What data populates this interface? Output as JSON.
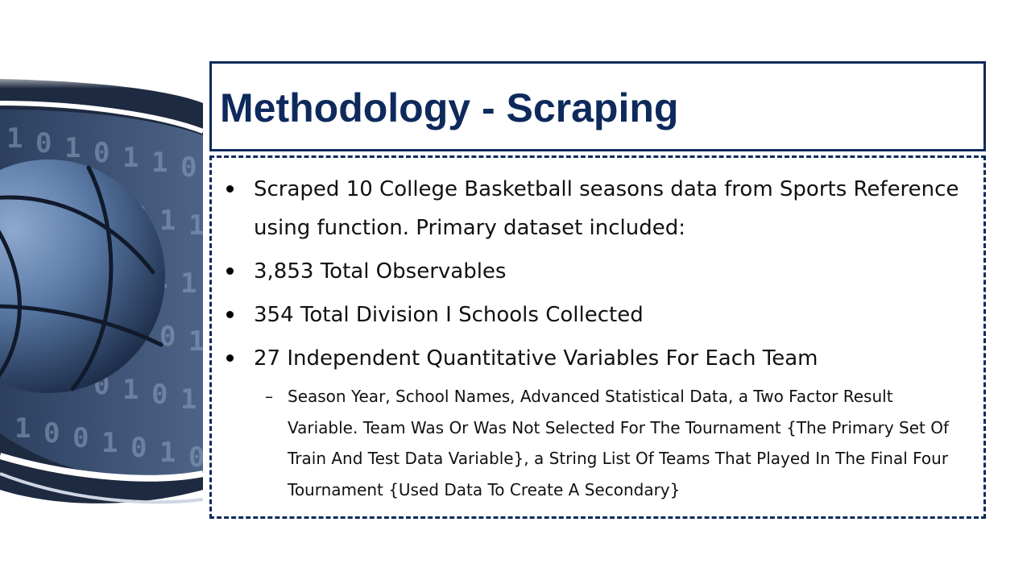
{
  "slide": {
    "title": "Methodology - Scraping",
    "bullets": [
      {
        "text": "Scraped 10 College Basketball seasons data from Sports Reference using function. Primary dataset included:"
      },
      {
        "text": "3,853 Total Observables"
      },
      {
        "text": "354 Total Division I Schools Collected"
      },
      {
        "text": "27 Independent Quantitative Variables For Each Team"
      }
    ],
    "sub_bullet": {
      "marker": "–",
      "text": "Season Year, School Names, Advanced Statistical Data, a Two Factor Result Variable. Team Was Or Was Not Selected For The Tournament {The Primary Set Of Train And Test Data Variable}, a String List Of Teams That Played In The Final Four Tournament {Used Data To Create A Secondary}"
    }
  },
  "colors": {
    "accent": "#0e2a5c",
    "ball": "#5a7aa6",
    "ball_dark": "#1c2c48"
  },
  "image": {
    "icon": "basketball-image",
    "digits": [
      "1",
      "0",
      "1",
      "0",
      "1",
      "1",
      "0",
      "0",
      "1",
      "0",
      "1",
      "0",
      "1",
      "1",
      "0"
    ]
  }
}
